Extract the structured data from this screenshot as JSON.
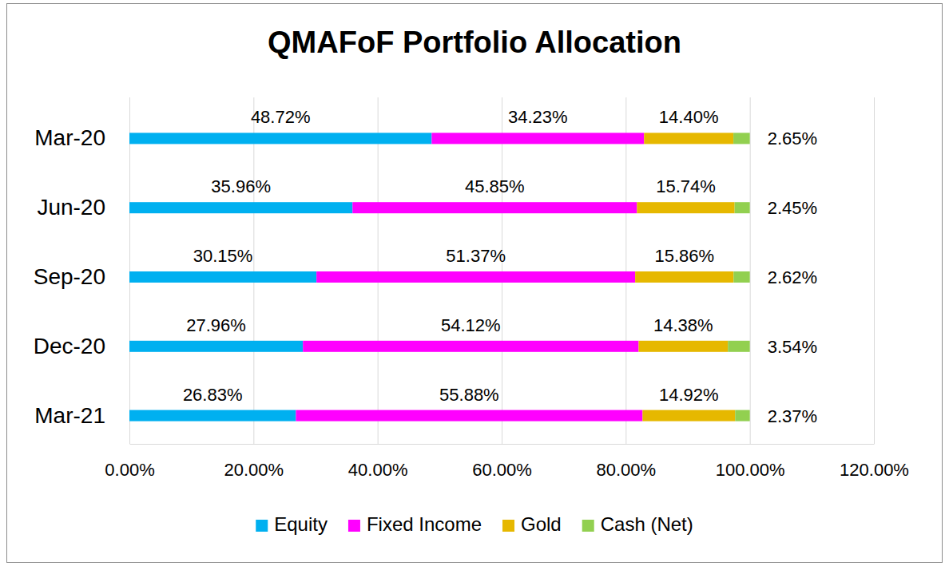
{
  "chart_data": {
    "type": "bar",
    "orientation": "horizontal",
    "stacked": true,
    "title": "QMAFoF Portfolio Allocation",
    "categories": [
      "Mar-20",
      "Jun-20",
      "Sep-20",
      "Dec-20",
      "Mar-21"
    ],
    "series": [
      {
        "name": "Equity",
        "color": "#00b0f0",
        "values": [
          48.72,
          35.96,
          30.15,
          27.96,
          26.83
        ],
        "value_labels": [
          "48.72%",
          "35.96%",
          "30.15%",
          "27.96%",
          "26.83%"
        ]
      },
      {
        "name": "Fixed Income",
        "color": "#ff00ff",
        "values": [
          34.23,
          45.85,
          51.37,
          54.12,
          55.88
        ],
        "value_labels": [
          "34.23%",
          "45.85%",
          "51.37%",
          "54.12%",
          "55.88%"
        ]
      },
      {
        "name": "Gold",
        "color": "#e6b800",
        "values": [
          14.4,
          15.74,
          15.86,
          14.38,
          14.92
        ],
        "value_labels": [
          "14.40%",
          "15.74%",
          "15.86%",
          "14.38%",
          "14.92%"
        ]
      },
      {
        "name": "Cash (Net)",
        "color": "#92d050",
        "values": [
          2.65,
          2.45,
          2.62,
          3.54,
          2.37
        ],
        "value_labels": [
          "2.65%",
          "2.45%",
          "2.62%",
          "3.54%",
          "2.37%"
        ]
      }
    ],
    "xlim": [
      0,
      120
    ],
    "xticks": [
      {
        "value": 0,
        "label": "0.00%"
      },
      {
        "value": 20,
        "label": "20.00%"
      },
      {
        "value": 40,
        "label": "40.00%"
      },
      {
        "value": 60,
        "label": "60.00%"
      },
      {
        "value": 80,
        "label": "80.00%"
      },
      {
        "value": 100,
        "label": "100.00%"
      },
      {
        "value": 120,
        "label": "120.00%"
      }
    ],
    "grid": true,
    "data_labels": true,
    "legend": "bottom"
  }
}
